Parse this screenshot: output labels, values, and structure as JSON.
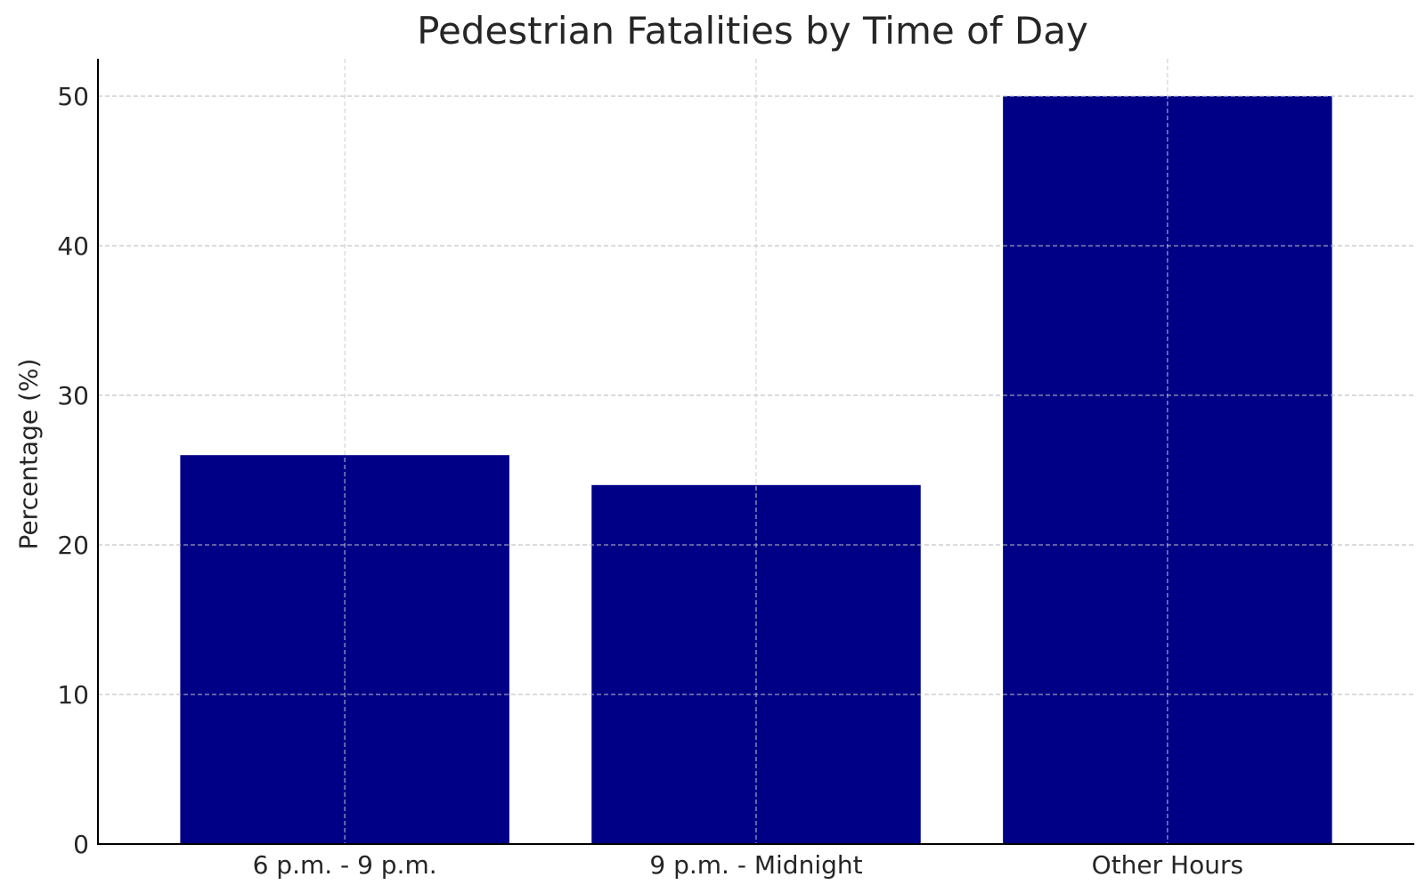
{
  "chart_data": {
    "type": "bar",
    "title": "Pedestrian Fatalities by Time of Day",
    "xlabel": "",
    "ylabel": "Percentage (%)",
    "categories": [
      "6 p.m. - 9 p.m.",
      "9 p.m. - Midnight",
      "Other Hours"
    ],
    "values": [
      26,
      24,
      50
    ],
    "ylim": [
      0,
      52.5
    ],
    "yticks": [
      0,
      10,
      20,
      30,
      40,
      50
    ],
    "grid": true,
    "bar_color": "#000087",
    "grid_color": "#cccccc"
  }
}
